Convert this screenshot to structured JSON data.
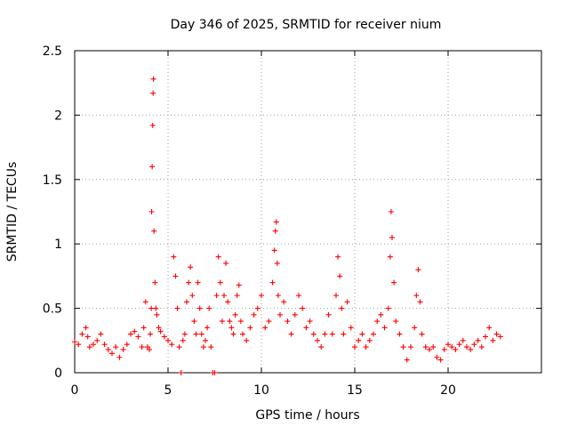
{
  "chart_data": {
    "type": "scatter",
    "title": "Day 346 of 2025, SRMTID for receiver nium",
    "xlabel": "GPS time / hours",
    "ylabel": "SRMTID / TECUs",
    "xlim": [
      0,
      25
    ],
    "ylim": [
      0,
      2.5
    ],
    "xticks": [
      0,
      5,
      10,
      15,
      20
    ],
    "xtick_labels": [
      "0",
      "5",
      "10",
      "15",
      "20"
    ],
    "yticks": [
      0,
      0.5,
      1,
      1.5,
      2,
      2.5
    ],
    "ytick_labels": [
      "0",
      "0.5",
      "1",
      "1.5",
      "2",
      "2.5"
    ],
    "grid": true,
    "marker": "+",
    "series": [
      {
        "name": "SRMTID",
        "color": "#ff0000",
        "x": [
          0.0,
          0.2,
          0.4,
          0.6,
          0.7,
          0.8,
          1.0,
          1.2,
          1.4,
          1.6,
          1.8,
          2.0,
          2.2,
          2.4,
          2.6,
          2.8,
          3.0,
          3.2,
          3.4,
          3.6,
          3.7,
          3.8,
          3.9,
          4.0,
          4.05,
          4.1,
          4.12,
          4.15,
          4.18,
          4.2,
          4.22,
          4.25,
          4.3,
          4.35,
          4.4,
          4.5,
          4.6,
          4.8,
          5.0,
          5.2,
          5.3,
          5.4,
          5.5,
          5.6,
          5.7,
          5.8,
          5.9,
          6.0,
          6.1,
          6.2,
          6.3,
          6.4,
          6.5,
          6.6,
          6.7,
          6.8,
          6.9,
          7.0,
          7.1,
          7.2,
          7.3,
          7.4,
          7.5,
          7.6,
          7.7,
          7.8,
          7.9,
          8.0,
          8.1,
          8.2,
          8.3,
          8.4,
          8.5,
          8.6,
          8.7,
          8.8,
          8.9,
          9.0,
          9.2,
          9.4,
          9.6,
          9.8,
          10.0,
          10.2,
          10.4,
          10.6,
          10.7,
          10.75,
          10.8,
          10.85,
          10.9,
          11.0,
          11.2,
          11.4,
          11.6,
          11.8,
          12.0,
          12.2,
          12.4,
          12.6,
          12.8,
          13.0,
          13.2,
          13.4,
          13.6,
          13.8,
          14.0,
          14.1,
          14.2,
          14.3,
          14.4,
          14.6,
          14.8,
          15.0,
          15.2,
          15.4,
          15.6,
          15.8,
          16.0,
          16.2,
          16.4,
          16.6,
          16.8,
          16.9,
          16.95,
          17.0,
          17.1,
          17.2,
          17.4,
          17.6,
          17.8,
          18.0,
          18.2,
          18.3,
          18.4,
          18.5,
          18.6,
          18.8,
          19.0,
          19.2,
          19.4,
          19.6,
          19.8,
          20.0,
          20.2,
          20.4,
          20.6,
          20.8,
          21.0,
          21.2,
          21.4,
          21.6,
          21.8,
          22.0,
          22.2,
          22.4,
          22.6,
          22.8
        ],
        "y": [
          0.24,
          0.22,
          0.3,
          0.35,
          0.28,
          0.2,
          0.22,
          0.25,
          0.3,
          0.22,
          0.18,
          0.15,
          0.2,
          0.12,
          0.18,
          0.22,
          0.3,
          0.32,
          0.28,
          0.2,
          0.35,
          0.55,
          0.2,
          0.18,
          0.3,
          0.5,
          1.25,
          1.6,
          1.92,
          2.17,
          2.28,
          1.1,
          0.7,
          0.5,
          0.45,
          0.35,
          0.32,
          0.28,
          0.25,
          0.22,
          0.9,
          0.75,
          0.5,
          0.2,
          0.0,
          0.25,
          0.3,
          0.55,
          0.7,
          0.82,
          0.6,
          0.4,
          0.3,
          0.7,
          0.5,
          0.3,
          0.2,
          0.25,
          0.35,
          0.5,
          0.2,
          0.0,
          0.0,
          0.6,
          0.9,
          0.7,
          0.4,
          0.6,
          0.85,
          0.55,
          0.4,
          0.35,
          0.3,
          0.45,
          0.6,
          0.68,
          0.4,
          0.3,
          0.25,
          0.35,
          0.45,
          0.5,
          0.6,
          0.35,
          0.4,
          0.7,
          0.95,
          1.1,
          1.17,
          0.85,
          0.6,
          0.45,
          0.55,
          0.4,
          0.3,
          0.45,
          0.6,
          0.5,
          0.35,
          0.4,
          0.3,
          0.25,
          0.2,
          0.3,
          0.45,
          0.3,
          0.6,
          0.9,
          0.75,
          0.5,
          0.3,
          0.55,
          0.35,
          0.2,
          0.25,
          0.3,
          0.2,
          0.25,
          0.3,
          0.4,
          0.45,
          0.35,
          0.5,
          0.9,
          1.25,
          1.05,
          0.7,
          0.4,
          0.3,
          0.2,
          0.1,
          0.2,
          0.35,
          0.6,
          0.8,
          0.55,
          0.3,
          0.2,
          0.18,
          0.2,
          0.12,
          0.1,
          0.18,
          0.22,
          0.2,
          0.18,
          0.22,
          0.25,
          0.2,
          0.18,
          0.22,
          0.25,
          0.2,
          0.28,
          0.35,
          0.25,
          0.3,
          0.28
        ]
      }
    ]
  }
}
